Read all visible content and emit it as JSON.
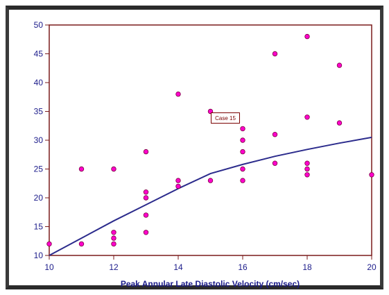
{
  "chart_data": {
    "type": "scatter",
    "title": "",
    "xlabel": "Peak Annular Late Diastolic Velocity (cm/sec)",
    "ylabel": "",
    "xlim": [
      10,
      20
    ],
    "ylim": [
      10,
      50
    ],
    "x_ticks": [
      "10",
      "12",
      "14",
      "16",
      "18",
      "20"
    ],
    "y_ticks": [
      "10",
      "15",
      "20",
      "25",
      "30",
      "35",
      "40",
      "45",
      "50"
    ],
    "grid": false,
    "colors": {
      "points": "#ff00cc",
      "point_edge": "#7a0040",
      "line": "#2b2b8c",
      "axes": "#7a1a1a",
      "text": "#1b1b8a"
    },
    "points": [
      [
        10,
        12
      ],
      [
        11,
        25
      ],
      [
        11,
        12
      ],
      [
        12,
        25
      ],
      [
        12,
        14
      ],
      [
        12,
        13
      ],
      [
        12,
        12
      ],
      [
        13,
        28
      ],
      [
        13,
        21
      ],
      [
        13,
        20
      ],
      [
        13,
        17
      ],
      [
        13,
        14
      ],
      [
        14,
        38
      ],
      [
        14,
        23
      ],
      [
        14,
        22
      ],
      [
        15,
        35
      ],
      [
        15,
        23
      ],
      [
        16,
        32
      ],
      [
        16,
        30
      ],
      [
        16,
        28
      ],
      [
        16,
        25
      ],
      [
        16,
        23
      ],
      [
        17,
        45
      ],
      [
        17,
        31
      ],
      [
        17,
        26
      ],
      [
        18,
        48
      ],
      [
        18,
        34
      ],
      [
        18,
        26
      ],
      [
        18,
        25
      ],
      [
        18,
        24
      ],
      [
        19,
        43
      ],
      [
        19,
        33
      ],
      [
        20,
        24
      ]
    ],
    "fit_line": {
      "x": [
        10,
        11,
        12,
        13,
        14,
        15,
        16,
        17,
        18,
        19,
        20
      ],
      "y": [
        10,
        13,
        16,
        18.8,
        21.6,
        24.2,
        25.8,
        27.2,
        28.4,
        29.5,
        30.5
      ]
    },
    "annotations": [
      {
        "text": "Case 15",
        "x": 15,
        "y": 35
      }
    ]
  }
}
